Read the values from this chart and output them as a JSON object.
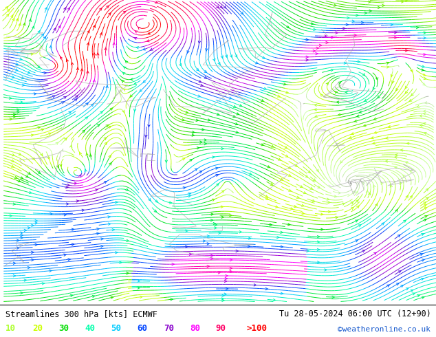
{
  "title_left": "Streamlines 300 hPa [kts] ECMWF",
  "title_right": "Tu 28-05-2024 06:00 UTC (12+90)",
  "credit": "©weatheronline.co.uk",
  "legend_values": [
    "10",
    "20",
    "30",
    "40",
    "50",
    "60",
    "70",
    "80",
    "90",
    ">100"
  ],
  "legend_colors": [
    "#adff2f",
    "#ccff00",
    "#00dd00",
    "#00ffaa",
    "#00ccff",
    "#0044ff",
    "#8800cc",
    "#ff00ff",
    "#ff0066",
    "#ff0000"
  ],
  "background_color": "#ffffff",
  "text_color": "#000000",
  "fig_width": 6.34,
  "fig_height": 4.9,
  "dpi": 100,
  "map_bg_color": "#ffffff"
}
